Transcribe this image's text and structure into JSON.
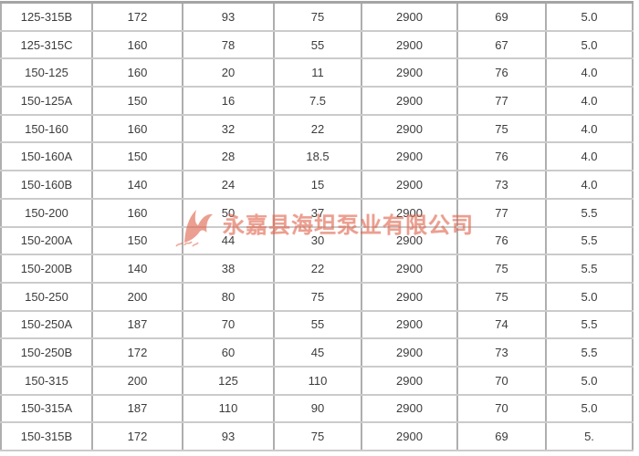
{
  "table": {
    "rows": [
      [
        "125-315B",
        "172",
        "93",
        "75",
        "2900",
        "69",
        "5.0"
      ],
      [
        "125-315C",
        "160",
        "78",
        "55",
        "2900",
        "67",
        "5.0"
      ],
      [
        "150-125",
        "160",
        "20",
        "11",
        "2900",
        "76",
        "4.0"
      ],
      [
        "150-125A",
        "150",
        "16",
        "7.5",
        "2900",
        "77",
        "4.0"
      ],
      [
        "150-160",
        "160",
        "32",
        "22",
        "2900",
        "75",
        "4.0"
      ],
      [
        "150-160A",
        "150",
        "28",
        "18.5",
        "2900",
        "76",
        "4.0"
      ],
      [
        "150-160B",
        "140",
        "24",
        "15",
        "2900",
        "73",
        "4.0"
      ],
      [
        "150-200",
        "160",
        "50",
        "37",
        "2900",
        "77",
        "5.5"
      ],
      [
        "150-200A",
        "150",
        "44",
        "30",
        "2900",
        "76",
        "5.5"
      ],
      [
        "150-200B",
        "140",
        "38",
        "22",
        "2900",
        "75",
        "5.5"
      ],
      [
        "150-250",
        "200",
        "80",
        "75",
        "2900",
        "75",
        "5.0"
      ],
      [
        "150-250A",
        "187",
        "70",
        "55",
        "2900",
        "74",
        "5.5"
      ],
      [
        "150-250B",
        "172",
        "60",
        "45",
        "2900",
        "73",
        "5.5"
      ],
      [
        "150-315",
        "200",
        "125",
        "110",
        "2900",
        "70",
        "5.0"
      ],
      [
        "150-315A",
        "187",
        "110",
        "90",
        "2900",
        "70",
        "5.0"
      ],
      [
        "150-315B",
        "172",
        "93",
        "75",
        "2900",
        "69",
        "5."
      ]
    ]
  },
  "watermark": {
    "company_text": "永嘉县海坦泵业有限公司",
    "logo_icon": "pump-brand-logo-icon",
    "color": "#e0654d"
  },
  "colors": {
    "cell_text": "#3c3c3c",
    "border_horizontal": "#cbcbcb",
    "border_vertical": "#aeaeae",
    "border_outer": "#a5a5a5",
    "background": "#ffffff"
  }
}
